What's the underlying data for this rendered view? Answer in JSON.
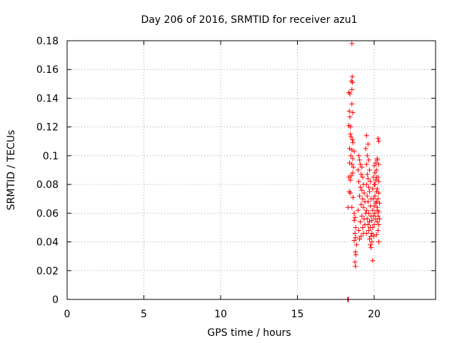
{
  "chart_data": {
    "type": "scatter",
    "title": "Day 206 of 2016, SRMTID for receiver azu1",
    "xlabel": "GPS time / hours",
    "ylabel": "SRMTID / TECUs",
    "xlim": [
      0,
      24
    ],
    "ylim": [
      0,
      0.18
    ],
    "xticks": [
      0,
      5,
      10,
      15,
      20
    ],
    "yticks": [
      0,
      0.02,
      0.04,
      0.06,
      0.08,
      0.1,
      0.12,
      0.14,
      0.16,
      0.18
    ],
    "xtick_labels": [
      "0",
      "5",
      "10",
      "15",
      "20"
    ],
    "ytick_labels": [
      "0",
      "0.02",
      "0.04",
      "0.06",
      "0.08",
      "0.1",
      "0.12",
      "0.14",
      "0.16",
      "0.18"
    ],
    "grid": true,
    "marker": "+",
    "color": "#ff0000",
    "series": [
      {
        "name": "SRMTID",
        "points": [
          [
            18.27,
            0.0
          ],
          [
            18.3,
            0.0
          ],
          [
            18.33,
            0.0
          ],
          [
            18.55,
            0.178
          ],
          [
            18.57,
            0.155
          ],
          [
            18.52,
            0.152
          ],
          [
            18.58,
            0.151
          ],
          [
            18.55,
            0.146
          ],
          [
            18.35,
            0.144
          ],
          [
            18.42,
            0.143
          ],
          [
            18.55,
            0.136
          ],
          [
            18.38,
            0.131
          ],
          [
            18.6,
            0.13
          ],
          [
            18.42,
            0.127
          ],
          [
            18.35,
            0.121
          ],
          [
            18.45,
            0.12
          ],
          [
            18.45,
            0.115
          ],
          [
            18.5,
            0.113
          ],
          [
            18.58,
            0.111
          ],
          [
            18.62,
            0.109
          ],
          [
            18.4,
            0.105
          ],
          [
            18.55,
            0.104
          ],
          [
            18.7,
            0.103
          ],
          [
            18.48,
            0.1
          ],
          [
            18.6,
            0.098
          ],
          [
            18.4,
            0.095
          ],
          [
            18.55,
            0.094
          ],
          [
            18.65,
            0.092
          ],
          [
            18.35,
            0.085
          ],
          [
            18.5,
            0.086
          ],
          [
            18.6,
            0.088
          ],
          [
            18.45,
            0.083
          ],
          [
            18.38,
            0.075
          ],
          [
            18.45,
            0.074
          ],
          [
            18.62,
            0.071
          ],
          [
            18.3,
            0.064
          ],
          [
            18.55,
            0.064
          ],
          [
            18.7,
            0.06
          ],
          [
            18.75,
            0.057
          ],
          [
            18.7,
            0.055
          ],
          [
            18.8,
            0.05
          ],
          [
            18.75,
            0.046
          ],
          [
            18.8,
            0.043
          ],
          [
            18.7,
            0.041
          ],
          [
            18.85,
            0.038
          ],
          [
            18.78,
            0.033
          ],
          [
            18.8,
            0.031
          ],
          [
            18.75,
            0.026
          ],
          [
            18.78,
            0.023
          ],
          [
            19.0,
            0.1
          ],
          [
            19.05,
            0.097
          ],
          [
            19.1,
            0.094
          ],
          [
            19.2,
            0.092
          ],
          [
            18.95,
            0.09
          ],
          [
            19.15,
            0.087
          ],
          [
            19.25,
            0.085
          ],
          [
            19.0,
            0.082
          ],
          [
            19.3,
            0.08
          ],
          [
            19.1,
            0.078
          ],
          [
            19.2,
            0.076
          ],
          [
            19.35,
            0.074
          ],
          [
            19.05,
            0.072
          ],
          [
            19.25,
            0.07
          ],
          [
            19.4,
            0.068
          ],
          [
            19.15,
            0.066
          ],
          [
            19.3,
            0.064
          ],
          [
            18.95,
            0.062
          ],
          [
            19.45,
            0.06
          ],
          [
            19.2,
            0.058
          ],
          [
            19.35,
            0.056
          ],
          [
            19.1,
            0.054
          ],
          [
            19.4,
            0.052
          ],
          [
            19.25,
            0.05
          ],
          [
            19.0,
            0.048
          ],
          [
            19.3,
            0.046
          ],
          [
            19.15,
            0.044
          ],
          [
            19.05,
            0.042
          ],
          [
            19.5,
            0.114
          ],
          [
            19.6,
            0.108
          ],
          [
            19.45,
            0.105
          ],
          [
            19.55,
            0.1
          ],
          [
            19.65,
            0.097
          ],
          [
            19.5,
            0.094
          ],
          [
            19.7,
            0.09
          ],
          [
            19.55,
            0.087
          ],
          [
            19.6,
            0.084
          ],
          [
            19.75,
            0.082
          ],
          [
            19.5,
            0.08
          ],
          [
            19.65,
            0.078
          ],
          [
            19.7,
            0.075
          ],
          [
            19.55,
            0.072
          ],
          [
            19.8,
            0.07
          ],
          [
            19.6,
            0.068
          ],
          [
            19.75,
            0.065
          ],
          [
            19.5,
            0.062
          ],
          [
            19.65,
            0.06
          ],
          [
            19.8,
            0.058
          ],
          [
            19.55,
            0.056
          ],
          [
            19.7,
            0.054
          ],
          [
            19.6,
            0.052
          ],
          [
            19.75,
            0.05
          ],
          [
            19.65,
            0.048
          ],
          [
            19.5,
            0.046
          ],
          [
            19.8,
            0.044
          ],
          [
            19.7,
            0.042
          ],
          [
            19.85,
            0.04
          ],
          [
            19.75,
            0.038
          ],
          [
            19.8,
            0.036
          ],
          [
            19.9,
            0.027
          ],
          [
            19.95,
            0.044
          ],
          [
            19.85,
            0.046
          ],
          [
            19.9,
            0.05
          ],
          [
            20.0,
            0.052
          ],
          [
            19.85,
            0.055
          ],
          [
            19.95,
            0.058
          ],
          [
            20.05,
            0.06
          ],
          [
            19.9,
            0.062
          ],
          [
            20.0,
            0.065
          ],
          [
            20.1,
            0.067
          ],
          [
            19.95,
            0.07
          ],
          [
            20.05,
            0.072
          ],
          [
            20.15,
            0.075
          ],
          [
            19.9,
            0.077
          ],
          [
            20.0,
            0.08
          ],
          [
            20.1,
            0.083
          ],
          [
            19.95,
            0.085
          ],
          [
            20.05,
            0.088
          ],
          [
            20.15,
            0.09
          ],
          [
            20.0,
            0.093
          ],
          [
            20.1,
            0.095
          ],
          [
            20.2,
            0.098
          ],
          [
            20.25,
            0.112
          ],
          [
            20.3,
            0.11
          ],
          [
            20.2,
            0.097
          ],
          [
            20.3,
            0.094
          ],
          [
            20.25,
            0.085
          ],
          [
            20.3,
            0.082
          ],
          [
            20.2,
            0.077
          ],
          [
            20.3,
            0.074
          ],
          [
            20.25,
            0.07
          ],
          [
            20.35,
            0.067
          ],
          [
            20.2,
            0.064
          ],
          [
            20.3,
            0.061
          ],
          [
            20.25,
            0.058
          ],
          [
            20.35,
            0.056
          ],
          [
            20.2,
            0.054
          ],
          [
            20.3,
            0.052
          ],
          [
            20.25,
            0.048
          ],
          [
            20.3,
            0.04
          ],
          [
            20.15,
            0.045
          ],
          [
            20.1,
            0.056
          ],
          [
            20.2,
            0.062
          ],
          [
            20.15,
            0.068
          ],
          [
            20.05,
            0.08
          ],
          [
            20.15,
            0.085
          ]
        ]
      }
    ]
  }
}
